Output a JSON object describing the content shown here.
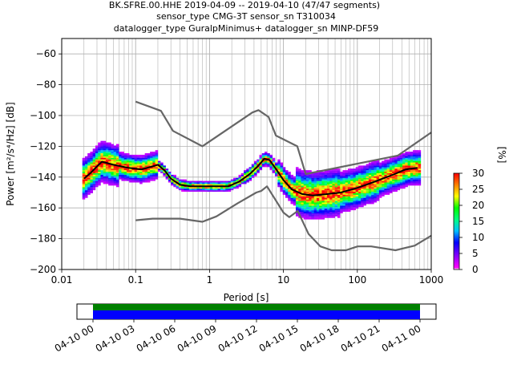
{
  "header": {
    "line1": "BK.SFRE.00.HHE   2019-04-09 -- 2019-04-10  (47/47 segments)",
    "line2": "sensor_type CMG-3T sensor_sn T310034",
    "line3": "datalogger_type GuralpMinimus+ datalogger_sn MINP-DF59"
  },
  "colorbar": {
    "label": "[%]",
    "ticks": [
      "0",
      "5",
      "10",
      "15",
      "20",
      "25",
      "30"
    ],
    "min": 0,
    "max": 30
  },
  "chart_data": [
    {
      "type": "heatmap",
      "ylabel": "Power [m²/s⁴/Hz] [dB]",
      "xlabel": "Period [s]",
      "xscale": "log",
      "xlim": [
        0.01,
        1000
      ],
      "ylim": [
        -200,
        -50
      ],
      "x_ticks": [
        "0.01",
        "0.1",
        "1",
        "10",
        "100",
        "1000"
      ],
      "y_ticks": [
        "−200",
        "−180",
        "−160",
        "−140",
        "−120",
        "−100",
        "−80",
        "−60"
      ],
      "grid": true,
      "series": [
        {
          "role": "mode",
          "color": "#000000",
          "points": [
            [
              0.02,
              -141
            ],
            [
              0.025,
              -137
            ],
            [
              0.03,
              -133
            ],
            [
              0.035,
              -130
            ],
            [
              0.05,
              -132
            ],
            [
              0.08,
              -134
            ],
            [
              0.12,
              -135
            ],
            [
              0.17,
              -133
            ],
            [
              0.2,
              -132
            ],
            [
              0.25,
              -136
            ],
            [
              0.3,
              -141
            ],
            [
              0.4,
              -145
            ],
            [
              0.55,
              -146
            ],
            [
              0.8,
              -146
            ],
            [
              1.2,
              -146
            ],
            [
              1.8,
              -146
            ],
            [
              2.5,
              -143
            ],
            [
              3.5,
              -138
            ],
            [
              4.5,
              -133
            ],
            [
              5.5,
              -128
            ],
            [
              6.5,
              -129
            ],
            [
              8,
              -135
            ],
            [
              10,
              -142
            ],
            [
              13,
              -148
            ],
            [
              18,
              -151
            ],
            [
              25,
              -152
            ],
            [
              40,
              -151
            ],
            [
              60,
              -150
            ],
            [
              100,
              -147
            ],
            [
              150,
              -144
            ],
            [
              220,
              -141
            ],
            [
              320,
              -138
            ],
            [
              450,
              -135
            ],
            [
              650,
              -134
            ]
          ]
        },
        {
          "role": "new_high_noise_model",
          "color": "#666666",
          "points": [
            [
              0.1,
              -91
            ],
            [
              0.22,
              -97
            ],
            [
              0.32,
              -110
            ],
            [
              0.8,
              -120
            ],
            [
              3.8,
              -98
            ],
            [
              4.6,
              -96.5
            ],
            [
              6.3,
              -101
            ],
            [
              7.9,
              -113
            ],
            [
              15.4,
              -120
            ],
            [
              20,
              -138
            ],
            [
              354,
              -126
            ],
            [
              1000,
              -111
            ]
          ]
        },
        {
          "role": "new_low_noise_model",
          "color": "#666666",
          "points": [
            [
              0.1,
              -168
            ],
            [
              0.17,
              -167
            ],
            [
              0.4,
              -167
            ],
            [
              0.8,
              -169
            ],
            [
              1.24,
              -165.5
            ],
            [
              2.4,
              -157
            ],
            [
              4.3,
              -150
            ],
            [
              5.0,
              -149
            ],
            [
              6.0,
              -146
            ],
            [
              10,
              -163
            ],
            [
              12,
              -166
            ],
            [
              15.6,
              -162
            ],
            [
              21.9,
              -177
            ],
            [
              31.6,
              -185
            ],
            [
              45,
              -187.5
            ],
            [
              70,
              -187.5
            ],
            [
              101,
              -185
            ],
            [
              154,
              -185
            ],
            [
              328,
              -187.5
            ],
            [
              600,
              -184.5
            ],
            [
              1000,
              -178
            ]
          ]
        }
      ]
    },
    {
      "type": "bar",
      "role": "data_availability",
      "x_ticks": [
        "04-10 00",
        "04-10 03",
        "04-10 06",
        "04-10 09",
        "04-10 12",
        "04-10 15",
        "04-10 18",
        "04-10 21",
        "04-11 00"
      ],
      "bands": [
        {
          "name": "green",
          "color": "#008000",
          "start": "04-10 00",
          "end": "04-11 00"
        },
        {
          "name": "blue",
          "color": "#0000ff",
          "start": "04-10 00",
          "end": "04-11 00"
        }
      ]
    }
  ]
}
